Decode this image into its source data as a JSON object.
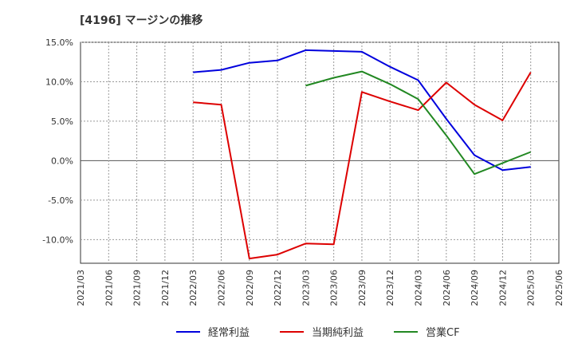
{
  "chart_data": {
    "type": "line",
    "title": "[4196]  マージンの推移",
    "xlabel": "",
    "ylabel": "",
    "ylim": [
      -13,
      15
    ],
    "yticks": [
      15,
      10,
      5,
      0,
      -5,
      -10
    ],
    "ytick_labels": [
      "15.0%",
      "10.0%",
      "5.0%",
      "0.0%",
      "-5.0%",
      "-10.0%"
    ],
    "x": [
      "2021/03",
      "2021/06",
      "2021/09",
      "2021/12",
      "2022/03",
      "2022/06",
      "2022/09",
      "2022/12",
      "2023/03",
      "2023/06",
      "2023/09",
      "2023/12",
      "2024/03",
      "2024/06",
      "2024/09",
      "2024/12",
      "2025/03",
      "2025/06"
    ],
    "series": [
      {
        "name": "経常利益",
        "color": "#0000dd",
        "values": [
          null,
          null,
          null,
          null,
          11.2,
          11.5,
          12.4,
          12.7,
          14.0,
          13.9,
          13.8,
          11.9,
          10.2,
          5.3,
          0.7,
          -1.2,
          -0.8,
          null
        ]
      },
      {
        "name": "当期純利益",
        "color": "#dd0000",
        "values": [
          null,
          null,
          null,
          null,
          7.4,
          7.1,
          -12.4,
          -11.9,
          -10.5,
          -10.6,
          8.7,
          7.5,
          6.4,
          9.9,
          7.1,
          5.1,
          11.2,
          null
        ]
      },
      {
        "name": "営業CF",
        "color": "#228822",
        "values": [
          null,
          null,
          null,
          null,
          null,
          null,
          null,
          null,
          9.5,
          10.5,
          11.3,
          9.7,
          7.8,
          3.2,
          -1.7,
          -0.3,
          1.1,
          null
        ]
      }
    ],
    "grid": true,
    "legend_position": "bottom"
  }
}
